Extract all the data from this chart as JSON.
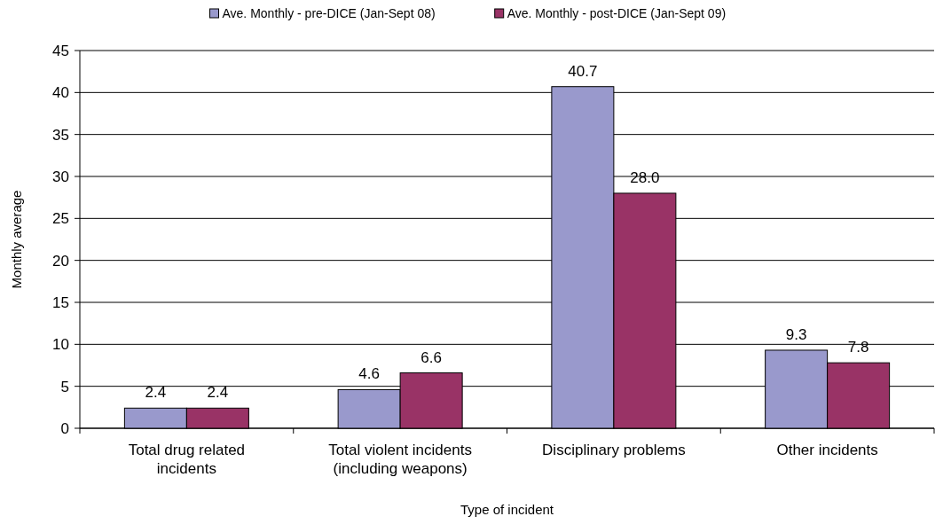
{
  "chart_data": {
    "type": "bar",
    "xlabel": "Type of incident",
    "ylabel": "Monthly average",
    "categories": [
      "Total drug related incidents",
      "Total violent incidents (including weapons)",
      "Disciplinary problems",
      "Other incidents"
    ],
    "series": [
      {
        "name": "Ave. Monthly - pre-DICE (Jan-Sept 08)",
        "color": "#9999cc",
        "values": [
          2.4,
          4.6,
          40.7,
          9.3
        ],
        "value_labels": [
          "2.4",
          "4.6",
          "40.7",
          "9.3"
        ]
      },
      {
        "name": "Ave. Monthly - post-DICE (Jan-Sept 09)",
        "color": "#993366",
        "values": [
          2.4,
          6.6,
          28.0,
          7.8
        ],
        "value_labels": [
          "2.4",
          "6.6",
          "28.0",
          "7.8"
        ]
      }
    ],
    "ylim": [
      0,
      45
    ],
    "yticks": [
      0,
      5,
      10,
      15,
      20,
      25,
      30,
      35,
      40,
      45
    ],
    "grid": "y",
    "legend": "top"
  }
}
